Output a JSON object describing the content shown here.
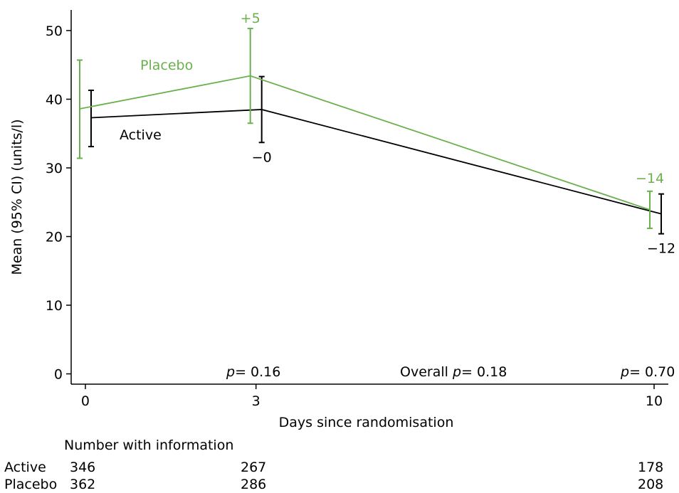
{
  "chart_data": {
    "type": "line",
    "xlabel": "Days since randomisation",
    "ylabel": "Mean (95% CI) (units/l)",
    "x_ticks": [
      0,
      3,
      10
    ],
    "y_ticks": [
      0,
      10,
      20,
      30,
      40,
      50
    ],
    "xlim": [
      -0.25,
      10.25
    ],
    "ylim": [
      -1.5,
      53
    ],
    "grid": false,
    "colors": {
      "active": "#000000",
      "placebo": "#6ab04c"
    },
    "series": [
      {
        "name": "Active",
        "points": [
          {
            "x": 0,
            "y": 37.3,
            "ci": [
              33.1,
              41.3
            ]
          },
          {
            "x": 3,
            "y": 38.5,
            "ci": [
              33.7,
              43.3
            ]
          },
          {
            "x": 10,
            "y": 23.3,
            "ci": [
              20.4,
              26.2
            ]
          }
        ],
        "change_labels": [
          "",
          "−0",
          "−12"
        ]
      },
      {
        "name": "Placebo",
        "points": [
          {
            "x": 0,
            "y": 38.6,
            "ci": [
              31.4,
              45.7
            ]
          },
          {
            "x": 3,
            "y": 43.4,
            "ci": [
              36.5,
              50.3
            ]
          },
          {
            "x": 10,
            "y": 23.9,
            "ci": [
              21.2,
              26.6
            ]
          }
        ],
        "change_labels": [
          "",
          "+5",
          "−14"
        ]
      }
    ],
    "p_values": [
      {
        "prefix": "",
        "p": "p",
        "value": "= 0.16"
      },
      {
        "prefix": "Overall ",
        "p": "p",
        "value": "= 0.18"
      },
      {
        "prefix": "",
        "p": "p",
        "value": "= 0.70"
      }
    ]
  },
  "numbers_table": {
    "title": "Number with information",
    "rows": [
      {
        "label": "Active",
        "values": [
          "346",
          "267",
          "178"
        ]
      },
      {
        "label": "Placebo",
        "values": [
          "362",
          "286",
          "208"
        ]
      }
    ]
  }
}
